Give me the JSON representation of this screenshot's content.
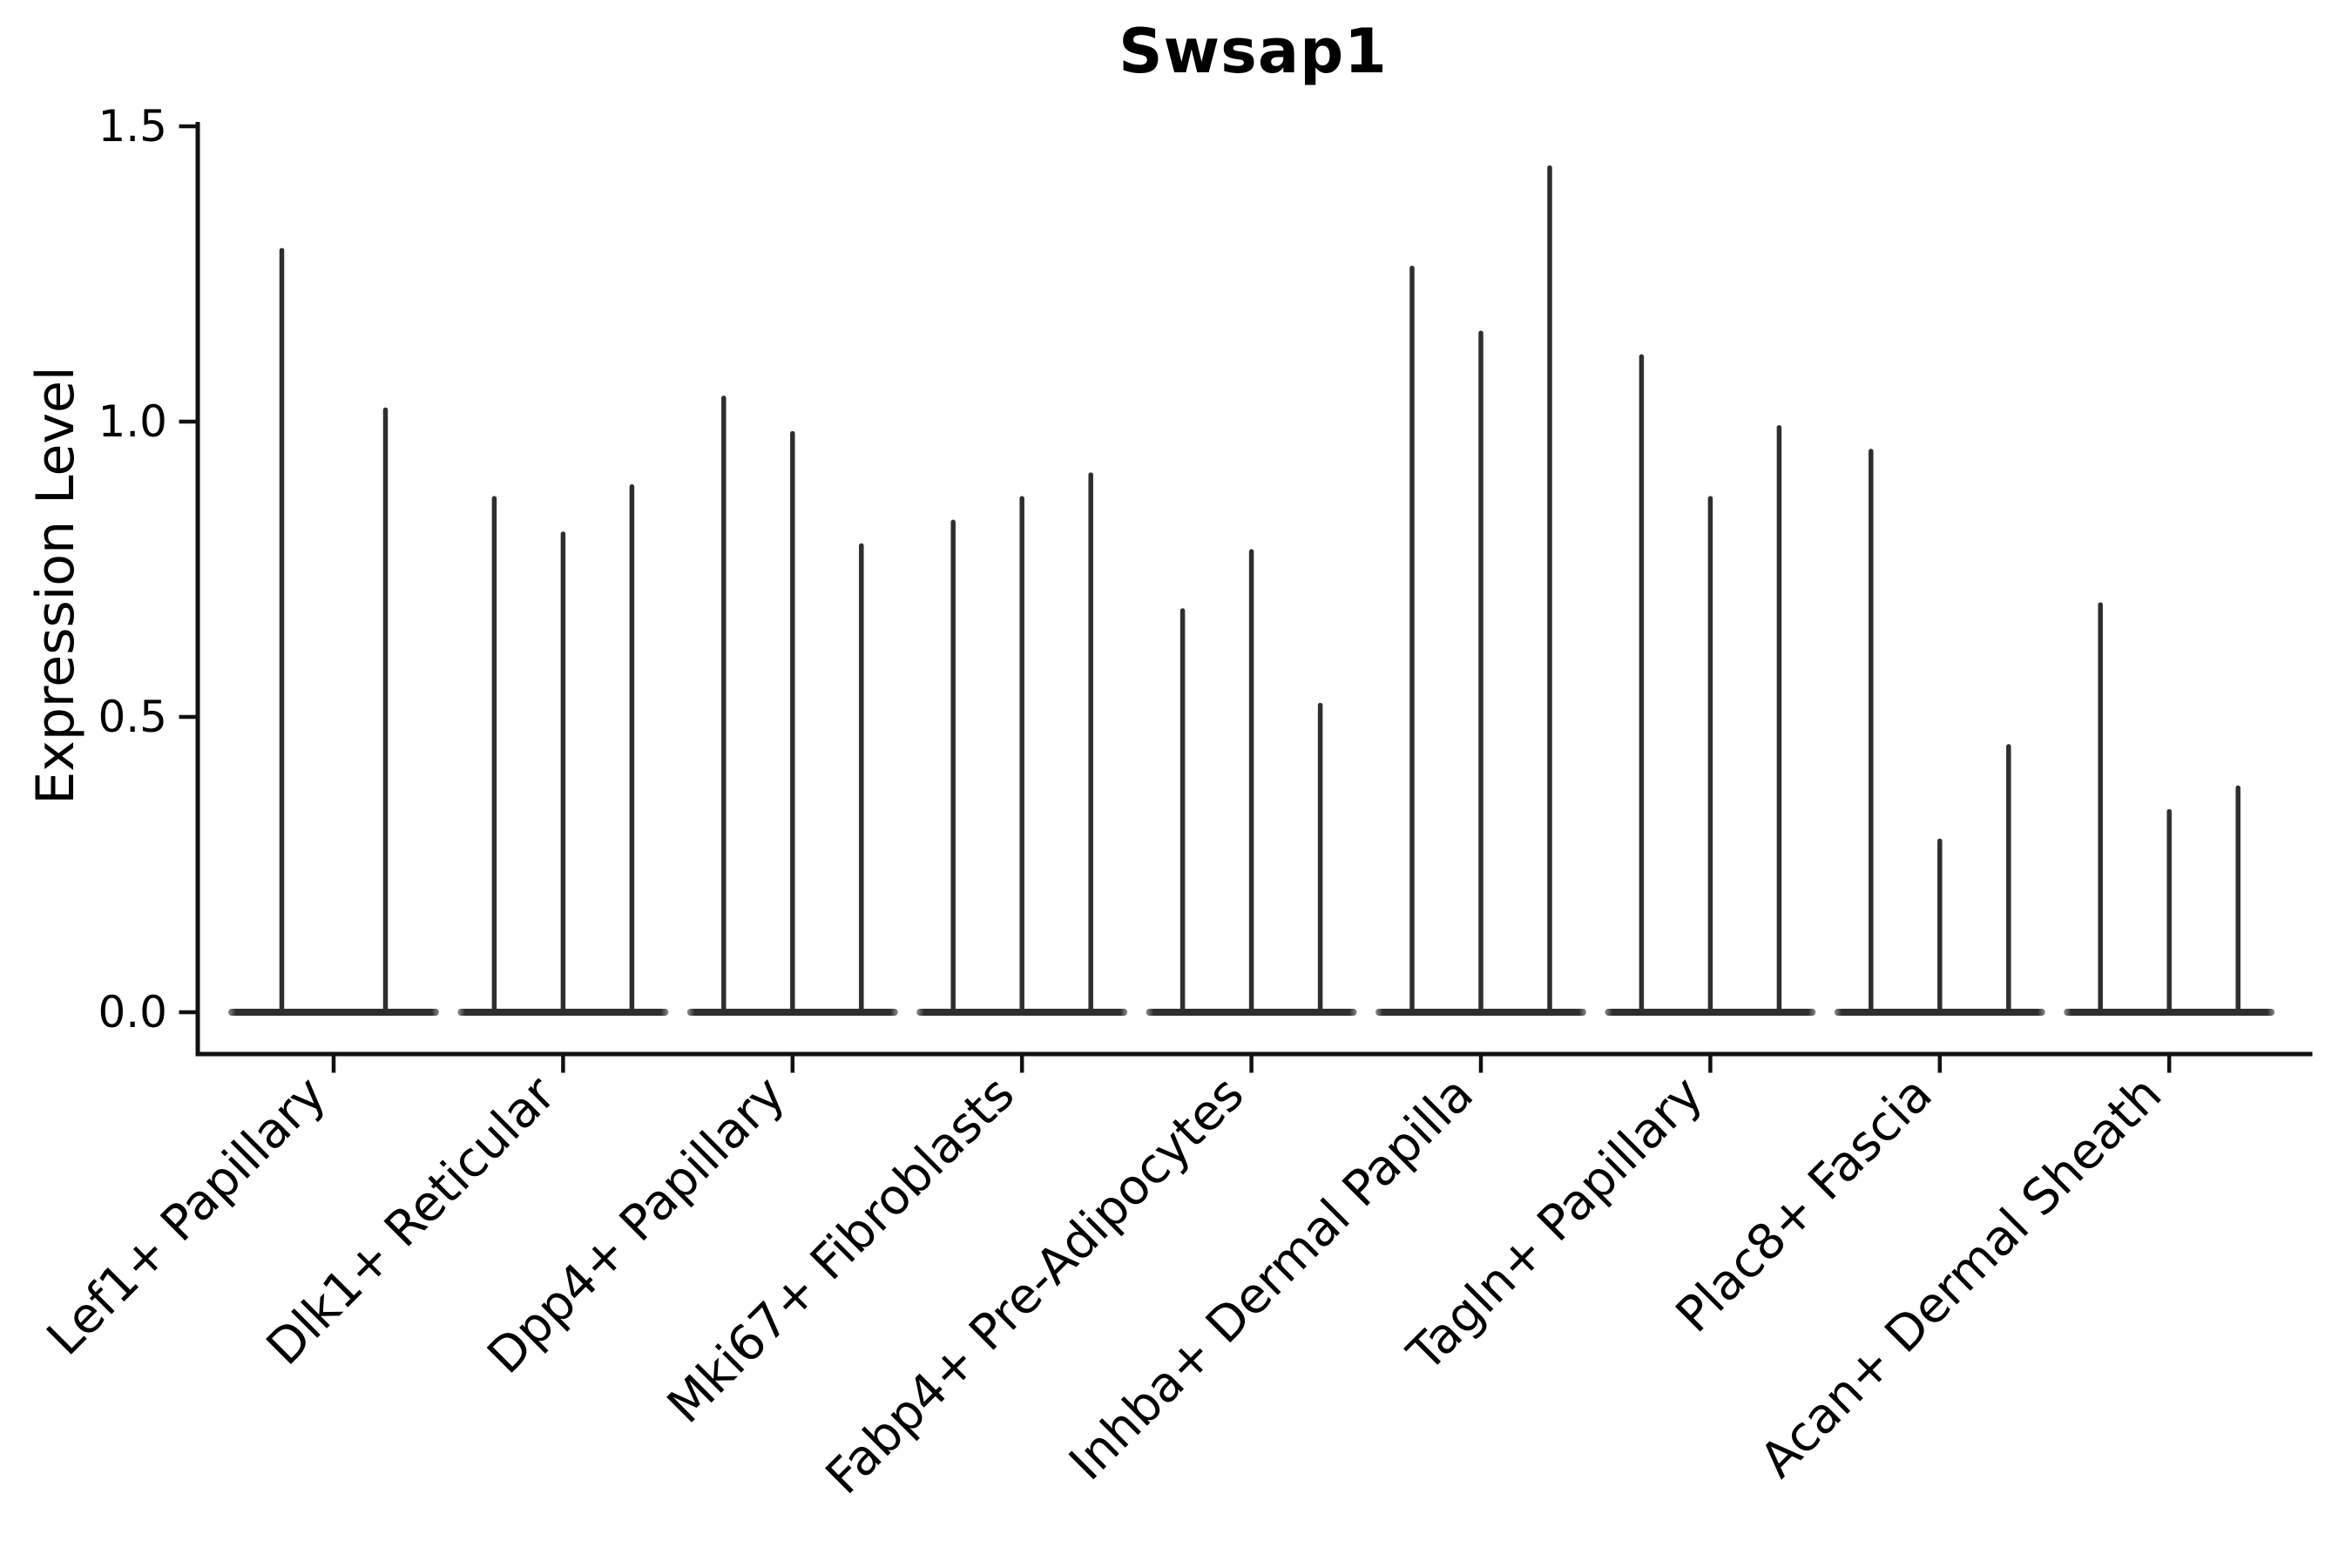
{
  "chart_data": {
    "type": "violin",
    "title": "Swsap1",
    "ylabel": "Expression Level",
    "xlabel": "",
    "ylim": [
      0,
      1.5
    ],
    "yticks": [
      "0.0",
      "0.5",
      "1.0",
      "1.5"
    ],
    "ytick_values": [
      0.0,
      0.5,
      1.0,
      1.5
    ],
    "grid": false,
    "legend": "none",
    "categories": [
      "Lef1+ Papillary",
      "Dlk1+ Reticular",
      "Dpp4+ Papillary",
      "Mki67+ Fibroblasts",
      "Fabp4+ Pre-Adipocytes",
      "Inhba+ Dermal Papilla",
      "Tagln+ Papillary",
      "Plac8+ Fascia",
      "Acan+ Dermal Sheath"
    ],
    "groups": [
      {
        "category": "Lef1+ Papillary",
        "violin_peaks": [
          1.29,
          1.02
        ]
      },
      {
        "category": "Dlk1+ Reticular",
        "violin_peaks": [
          0.87,
          0.81,
          0.89
        ]
      },
      {
        "category": "Dpp4+ Papillary",
        "violin_peaks": [
          1.04,
          0.98,
          0.79
        ]
      },
      {
        "category": "Mki67+ Fibroblasts",
        "violin_peaks": [
          0.83,
          0.87,
          0.91
        ]
      },
      {
        "category": "Fabp4+ Pre-Adipocytes",
        "violin_peaks": [
          0.68,
          0.78,
          0.52
        ]
      },
      {
        "category": "Inhba+ Dermal Papilla",
        "violin_peaks": [
          1.26,
          1.15,
          1.43
        ]
      },
      {
        "category": "Tagln+ Papillary",
        "violin_peaks": [
          1.11,
          0.87,
          0.99
        ]
      },
      {
        "category": "Plac8+ Fascia",
        "violin_peaks": [
          0.95,
          0.29,
          0.45
        ]
      },
      {
        "category": "Acan+ Dermal Sheath",
        "violin_peaks": [
          0.69,
          0.34,
          0.38
        ]
      }
    ],
    "violin_shape_note": "each violin is a thin vertical spike rising from a flat wide base at 0",
    "colors": {
      "violin": "#2e2e2e",
      "violin_base_edge": "#8f8f8f",
      "axis": "#111111",
      "text": "#000000",
      "background": "#ffffff"
    }
  }
}
